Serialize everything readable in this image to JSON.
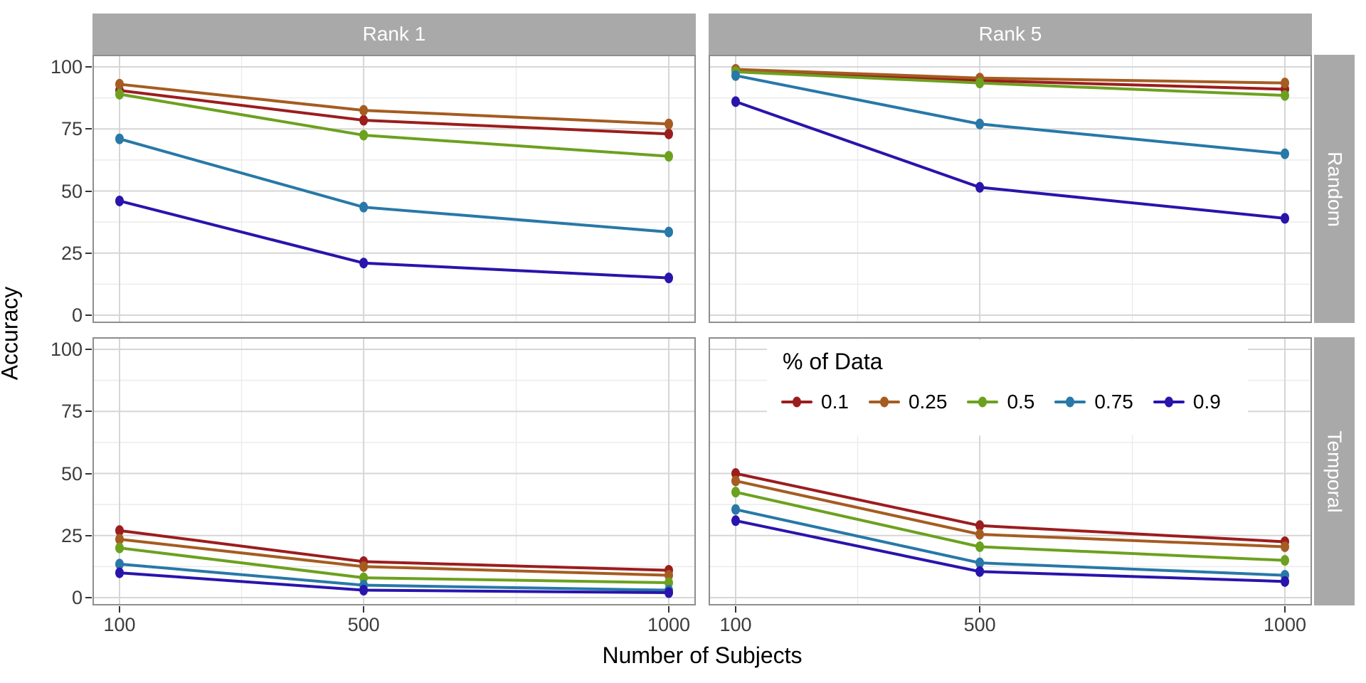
{
  "chart_data": {
    "type": "line",
    "title": "",
    "xlabel": "Number of Subjects",
    "ylabel": "Accuracy",
    "x": [
      100,
      500,
      1000
    ],
    "x_ticks": [
      100,
      500,
      1000
    ],
    "x_minor": [
      300,
      750
    ],
    "y_ticks": [
      0,
      25,
      50,
      75,
      100
    ],
    "xlim": [
      100,
      1000
    ],
    "ylim": [
      0,
      100
    ],
    "grid": "major and minor, light gray on white",
    "legend_position": "inset at top of Rank 5 / Temporal panel",
    "facets": {
      "columns": [
        "Rank 1",
        "Rank 5"
      ],
      "rows": [
        "Random",
        "Temporal"
      ]
    },
    "legend": {
      "title": "% of Data",
      "entries": [
        "0.1",
        "0.25",
        "0.5",
        "0.75",
        "0.9"
      ]
    },
    "series_order": [
      "0.1",
      "0.25",
      "0.5",
      "0.75",
      "0.9"
    ],
    "series_colors": {
      "0.1": "#9B1D1E",
      "0.25": "#A55C21",
      "0.5": "#6CA11F",
      "0.75": "#2878A8",
      "0.9": "#2914AC"
    },
    "panels": [
      {
        "column": "Rank 1",
        "row": "Random",
        "series": {
          "0.1": [
            90.5,
            78.5,
            73
          ],
          "0.25": [
            93,
            82.5,
            77
          ],
          "0.5": [
            89,
            72.5,
            64
          ],
          "0.75": [
            71,
            43.5,
            33.5
          ],
          "0.9": [
            46,
            21,
            15
          ]
        }
      },
      {
        "column": "Rank 5",
        "row": "Random",
        "series": {
          "0.1": [
            98.5,
            94.5,
            91
          ],
          "0.25": [
            99,
            95.5,
            93.5
          ],
          "0.5": [
            98,
            93.5,
            88.5
          ],
          "0.75": [
            96.5,
            77,
            65
          ],
          "0.9": [
            86,
            51.5,
            39
          ]
        }
      },
      {
        "column": "Rank 1",
        "row": "Temporal",
        "series": {
          "0.1": [
            27,
            14.5,
            11
          ],
          "0.25": [
            23.5,
            12.5,
            9
          ],
          "0.5": [
            20,
            8,
            6
          ],
          "0.75": [
            13.5,
            5,
            3
          ],
          "0.9": [
            10,
            3,
            2
          ]
        }
      },
      {
        "column": "Rank 5",
        "row": "Temporal",
        "series": {
          "0.1": [
            50,
            29,
            22.5
          ],
          "0.25": [
            47,
            25.5,
            20.5
          ],
          "0.5": [
            42.5,
            20.5,
            15
          ],
          "0.75": [
            35.5,
            14,
            9
          ],
          "0.9": [
            31,
            10.5,
            6.5
          ]
        }
      }
    ],
    "colors": {
      "strip_fill": "#A9A9A9",
      "strip_text": "#FFFFFF",
      "grid_major": "#D6D6D6",
      "grid_minor": "#EBEBEB",
      "panel_border": "#8E8E8E",
      "axis_tick": "#333333",
      "tick_label": "#3C3C3C",
      "axis_title": "#000000",
      "background": "#FFFFFF"
    }
  }
}
